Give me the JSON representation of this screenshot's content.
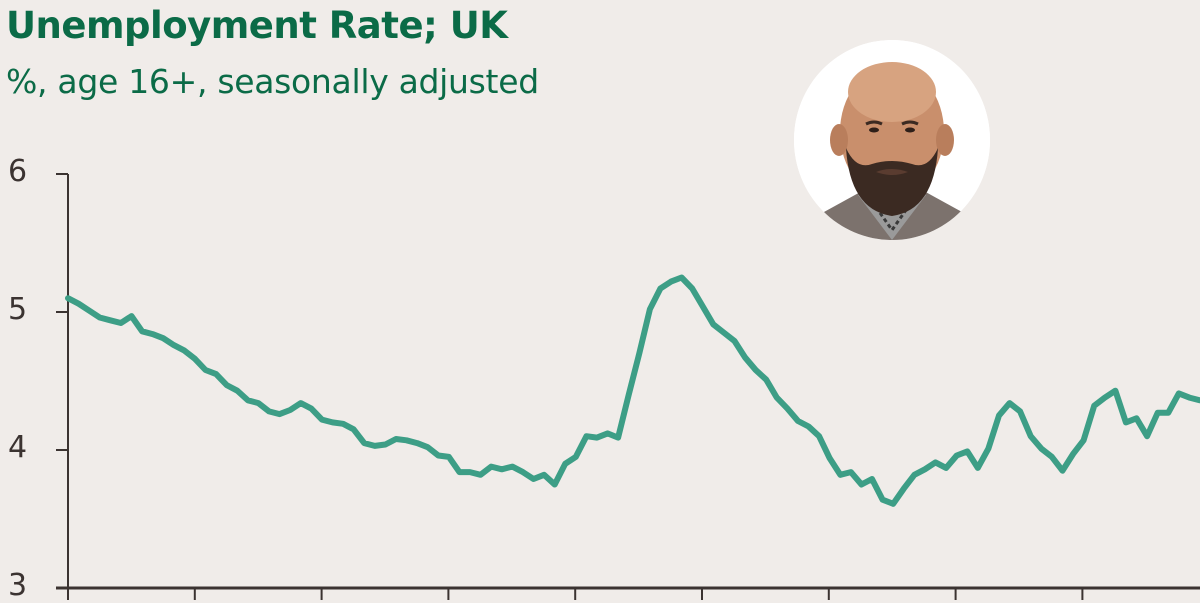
{
  "header": {
    "title": "Unemployment Rate; UK",
    "subtitle": "%, age 16+, seasonally adjusted"
  },
  "avatar": {
    "description": "circular portrait photo of bald bearded man in checked shirt and grey jacket"
  },
  "colors": {
    "title": "#0b6b47",
    "line": "#3d9e86",
    "axis": "#3b3331",
    "background": "#f0ece9"
  },
  "chart_data": {
    "type": "line",
    "title": "Unemployment Rate; UK",
    "subtitle": "%, age 16+, seasonally adjusted",
    "xlabel": "",
    "ylabel": "%",
    "ylim": [
      3,
      6
    ],
    "yticks": [
      3,
      4,
      5,
      6
    ],
    "x_tick_count": 9,
    "x_tick_labels": [],
    "grid": false,
    "legend": "none",
    "series": [
      {
        "name": "Unemployment rate",
        "values": [
          5.1,
          5.06,
          5.01,
          4.96,
          4.94,
          4.92,
          4.97,
          4.86,
          4.84,
          4.81,
          4.76,
          4.72,
          4.66,
          4.58,
          4.55,
          4.47,
          4.43,
          4.36,
          4.34,
          4.28,
          4.26,
          4.29,
          4.34,
          4.3,
          4.22,
          4.2,
          4.19,
          4.15,
          4.05,
          4.03,
          4.04,
          4.08,
          4.07,
          4.05,
          4.02,
          3.96,
          3.95,
          3.84,
          3.84,
          3.82,
          3.88,
          3.86,
          3.88,
          3.84,
          3.79,
          3.82,
          3.75,
          3.9,
          3.95,
          4.1,
          4.09,
          4.12,
          4.09,
          4.4,
          4.7,
          5.02,
          5.17,
          5.22,
          5.25,
          5.17,
          5.04,
          4.91,
          4.85,
          4.79,
          4.67,
          4.58,
          4.51,
          4.38,
          4.3,
          4.21,
          4.17,
          4.1,
          3.94,
          3.82,
          3.84,
          3.75,
          3.79,
          3.64,
          3.61,
          3.72,
          3.82,
          3.86,
          3.91,
          3.87,
          3.96,
          3.99,
          3.87,
          4.01,
          4.25,
          4.34,
          4.28,
          4.1,
          4.01,
          3.95,
          3.85,
          3.97,
          4.07,
          4.32,
          4.38,
          4.43,
          4.2,
          4.23,
          4.1,
          4.27,
          4.27,
          4.41,
          4.38,
          4.36
        ]
      }
    ]
  }
}
